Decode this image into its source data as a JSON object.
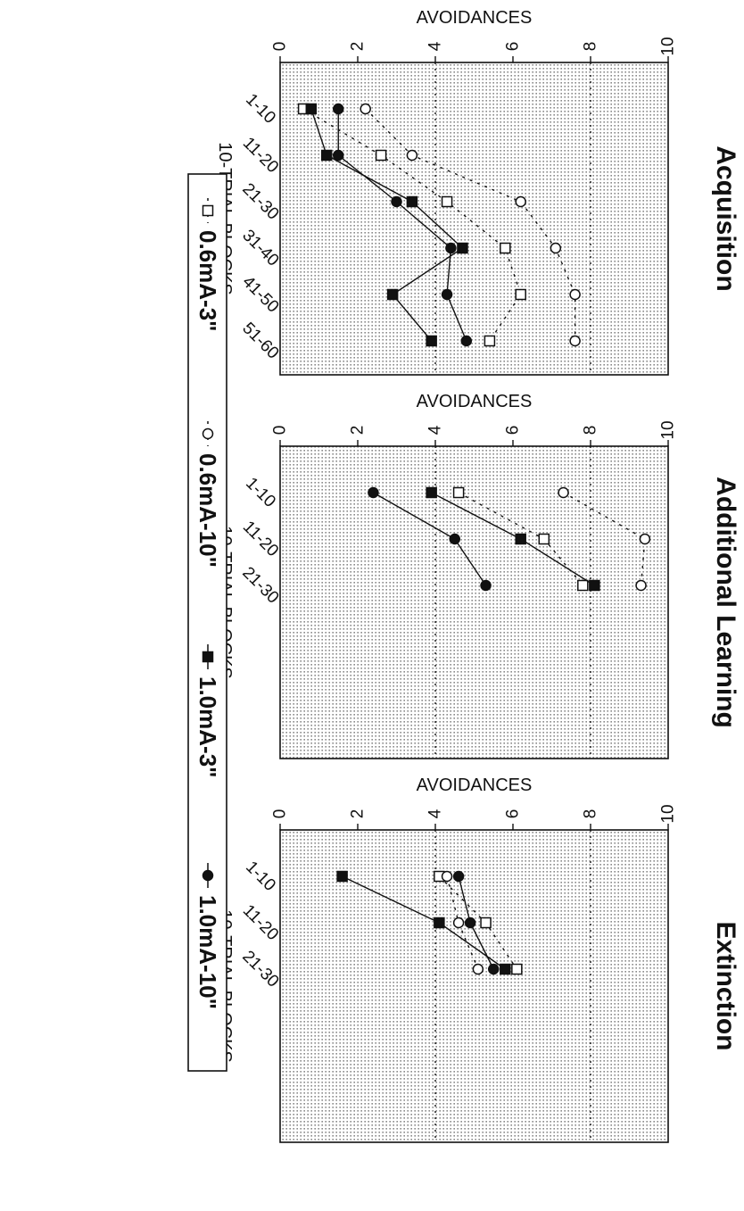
{
  "chart_data": [
    {
      "type": "line",
      "title": "Acquisition",
      "xlabel": "10-TRIAL BLOCKS",
      "ylabel": "AVOIDANCES",
      "ylim": [
        0,
        10
      ],
      "yticks": [
        "0",
        "2",
        "4",
        "6",
        "8",
        "10"
      ],
      "categories": [
        "1-10",
        "11-20",
        "21-30",
        "31-40",
        "41-50",
        "51-60"
      ],
      "grid": true,
      "series": [
        {
          "name": "0.6mA-3\"",
          "values": [
            0.6,
            2.6,
            4.3,
            5.8,
            6.2,
            5.4
          ]
        },
        {
          "name": "0.6mA-10\"",
          "values": [
            2.2,
            3.4,
            6.2,
            7.1,
            7.6,
            7.6
          ]
        },
        {
          "name": "1.0mA-3\"",
          "values": [
            0.8,
            1.2,
            3.4,
            4.7,
            2.9,
            3.9
          ]
        },
        {
          "name": "1.0mA-10\"",
          "values": [
            1.5,
            1.5,
            3.0,
            4.4,
            4.3,
            4.8
          ]
        }
      ]
    },
    {
      "type": "line",
      "title": "Additional Learning",
      "xlabel": "10-TRIAL BLOCKS",
      "ylabel": "AVOIDANCES",
      "ylim": [
        0,
        10
      ],
      "yticks": [
        "0",
        "2",
        "4",
        "6",
        "8",
        "10"
      ],
      "categories": [
        "1-10",
        "11-20",
        "21-30"
      ],
      "grid": true,
      "series": [
        {
          "name": "0.6mA-3\"",
          "values": [
            4.6,
            6.8,
            7.8
          ]
        },
        {
          "name": "0.6mA-10\"",
          "values": [
            7.3,
            9.4,
            9.3
          ]
        },
        {
          "name": "1.0mA-3\"",
          "values": [
            3.9,
            6.2,
            8.1
          ]
        },
        {
          "name": "1.0mA-10\"",
          "values": [
            2.4,
            4.5,
            5.3
          ]
        }
      ]
    },
    {
      "type": "line",
      "title": "Extinction",
      "xlabel": "10-TRIAL BLOCKS",
      "ylabel": "AVOIDANCES",
      "ylim": [
        0,
        10
      ],
      "yticks": [
        "0",
        "2",
        "4",
        "6",
        "8",
        "10"
      ],
      "categories": [
        "1-10",
        "11-20",
        "21-30"
      ],
      "grid": true,
      "series": [
        {
          "name": "0.6mA-3\"",
          "values": [
            4.1,
            5.3,
            6.1
          ]
        },
        {
          "name": "0.6mA-10\"",
          "values": [
            4.3,
            4.6,
            5.1
          ]
        },
        {
          "name": "1.0mA-3\"",
          "values": [
            1.6,
            4.1,
            5.8
          ]
        },
        {
          "name": "1.0mA-10\"",
          "values": [
            4.6,
            4.9,
            5.5
          ]
        }
      ]
    }
  ],
  "legend": {
    "placement": "bottom",
    "entries": [
      "0.6mA-3\"",
      "0.6mA-10\"",
      "1.0mA-3\"",
      "1.0mA-10\""
    ]
  },
  "style": {
    "open_series_color": "#111111",
    "filled_series_color": "#111111",
    "grid_color": "#9a9a9a",
    "panel_background": "#ebebeb"
  }
}
